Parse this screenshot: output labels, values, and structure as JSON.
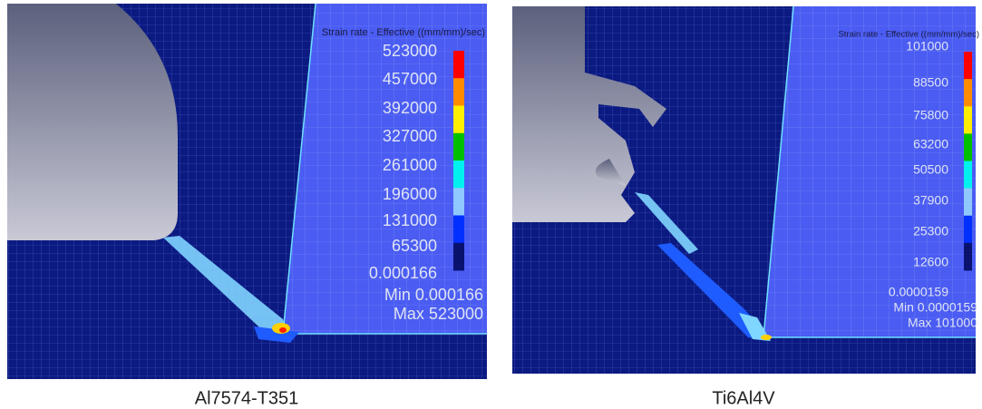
{
  "panels": [
    {
      "legend": {
        "title": "Strain rate - Effective ((mm/mm)/sec)",
        "labels": [
          "523000",
          "457000",
          "392000",
          "327000",
          "261000",
          "196000",
          "131000",
          "65300",
          "0.000166"
        ]
      },
      "min": "Min 0.000166",
      "max": "Max 523000",
      "caption": "Al7574-T351"
    },
    {
      "legend": {
        "title": "Strain rate - Effective ((mm/mm)/sec)",
        "labels": [
          "101000",
          "88500",
          "75800",
          "63200",
          "50500",
          "37900",
          "25300",
          "12600",
          "0.0000159"
        ]
      },
      "min": "Min 0.0000159",
      "max": "Max 101000",
      "caption": "Ti6Al4V"
    }
  ]
}
